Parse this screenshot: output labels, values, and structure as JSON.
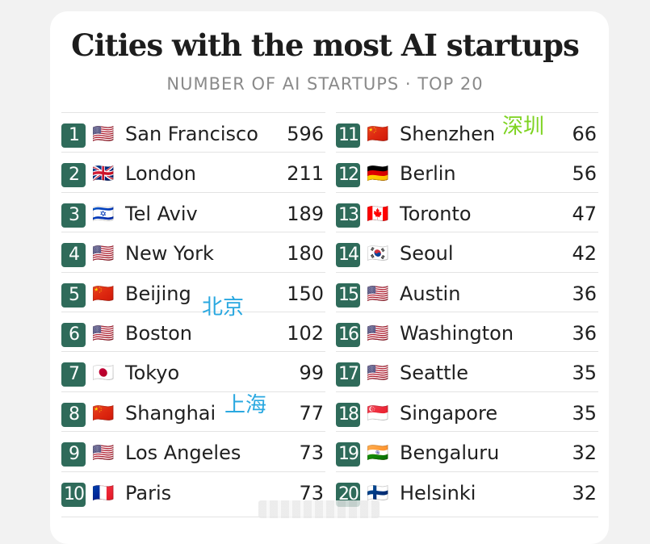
{
  "chart_data": {
    "type": "table",
    "title": "Cities with the most AI startups",
    "subtitle": "NUMBER OF AI STARTUPS · TOP 20",
    "rows": [
      {
        "rank": "1",
        "flag": "🇺🇸",
        "city": "San Francisco",
        "value": "596"
      },
      {
        "rank": "2",
        "flag": "🇬🇧",
        "city": "London",
        "value": "211"
      },
      {
        "rank": "3",
        "flag": "🇮🇱",
        "city": "Tel Aviv",
        "value": "189"
      },
      {
        "rank": "4",
        "flag": "🇺🇸",
        "city": "New York",
        "value": "180"
      },
      {
        "rank": "5",
        "flag": "🇨🇳",
        "city": "Beijing",
        "value": "150"
      },
      {
        "rank": "6",
        "flag": "🇺🇸",
        "city": "Boston",
        "value": "102"
      },
      {
        "rank": "7",
        "flag": "🇯🇵",
        "city": "Tokyo",
        "value": "99"
      },
      {
        "rank": "8",
        "flag": "🇨🇳",
        "city": "Shanghai",
        "value": "77"
      },
      {
        "rank": "9",
        "flag": "🇺🇸",
        "city": "Los Angeles",
        "value": "73"
      },
      {
        "rank": "10",
        "flag": "🇫🇷",
        "city": "Paris",
        "value": "73"
      },
      {
        "rank": "11",
        "flag": "🇨🇳",
        "city": "Shenzhen",
        "value": "66"
      },
      {
        "rank": "12",
        "flag": "🇩🇪",
        "city": "Berlin",
        "value": "56"
      },
      {
        "rank": "13",
        "flag": "🇨🇦",
        "city": "Toronto",
        "value": "47"
      },
      {
        "rank": "14",
        "flag": "🇰🇷",
        "city": "Seoul",
        "value": "42"
      },
      {
        "rank": "15",
        "flag": "🇺🇸",
        "city": "Austin",
        "value": "36"
      },
      {
        "rank": "16",
        "flag": "🇺🇸",
        "city": "Washington",
        "value": "36"
      },
      {
        "rank": "17",
        "flag": "🇺🇸",
        "city": "Seattle",
        "value": "35"
      },
      {
        "rank": "18",
        "flag": "🇸🇬",
        "city": "Singapore",
        "value": "35"
      },
      {
        "rank": "19",
        "flag": "🇮🇳",
        "city": "Bengaluru",
        "value": "32"
      },
      {
        "rank": "20",
        "flag": "🇫🇮",
        "city": "Helsinki",
        "value": "32"
      }
    ]
  },
  "annotations": {
    "shenzhen": {
      "text": "深圳",
      "color": "#7ed321"
    },
    "beijing": {
      "text": "北京",
      "color": "#2aa8e0"
    },
    "shanghai": {
      "text": "上海",
      "color": "#2aa8e0"
    }
  },
  "colors": {
    "rank_badge": "#2f6b5a",
    "text": "#202020",
    "subtitle": "#8a8a8a"
  }
}
